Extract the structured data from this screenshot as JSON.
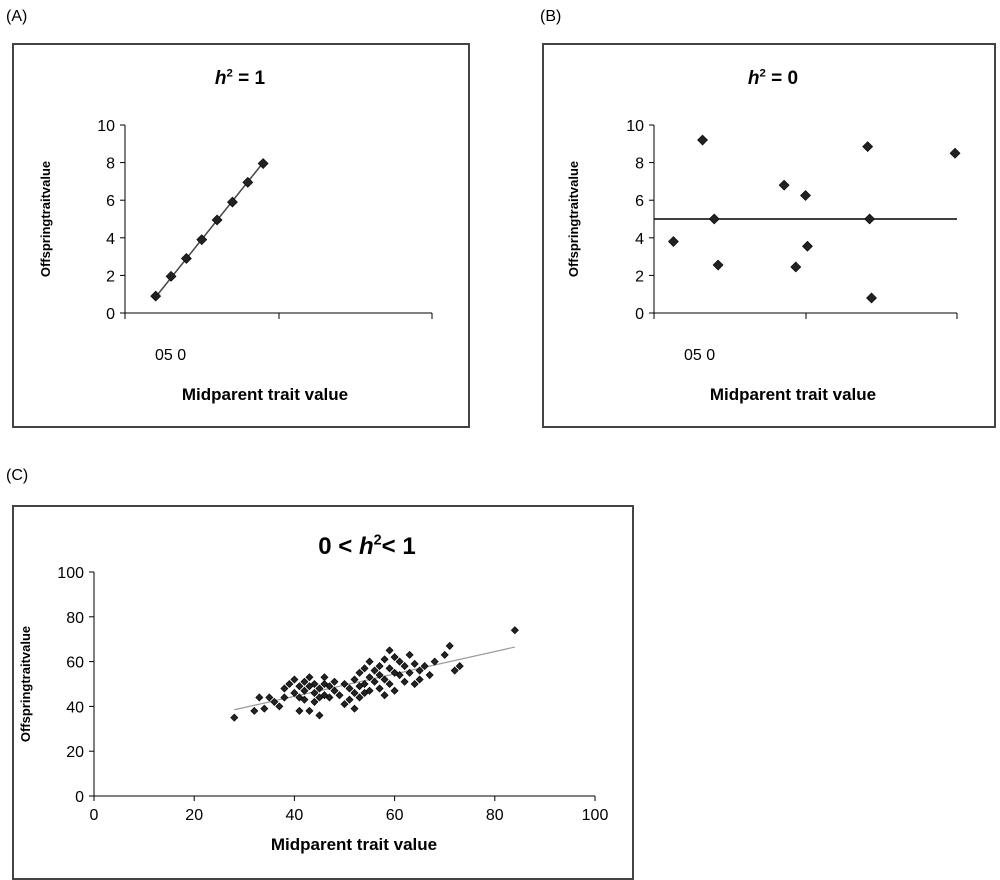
{
  "panel_labels": [
    "(A)",
    "(B)",
    "(C)"
  ],
  "chart_data": [
    {
      "panel": "(A)",
      "type": "scatter",
      "title_var": "h",
      "title_sup": "2",
      "title_rest": " = 1",
      "xlabel": "Midparent trait value",
      "ylabel": "Offspringtraitvalue",
      "x_tick_text": "05 0",
      "ylim": [
        0,
        10
      ],
      "yticks": [
        "0",
        "2",
        "4",
        "6",
        "8",
        "10"
      ],
      "x": [
        1,
        2,
        3,
        4,
        5,
        6,
        7,
        8
      ],
      "y": [
        0.9,
        1.95,
        2.9,
        3.9,
        4.95,
        5.9,
        6.95,
        7.95
      ],
      "trendline": {
        "type": "linear",
        "from": [
          1,
          0.85
        ],
        "to": [
          8,
          8.0
        ]
      }
    },
    {
      "panel": "(B)",
      "type": "scatter",
      "title_var": "h",
      "title_sup": "2",
      "title_rest": " = 0",
      "xlabel": "Midparent trait value",
      "ylabel": "Offspringtraitvalue",
      "x_tick_text": "05 0",
      "ylim": [
        0,
        10
      ],
      "yticks": [
        "0",
        "2",
        "4",
        "6",
        "8",
        "10"
      ],
      "x": [
        0.5,
        2.0,
        2.6,
        2.8,
        6.2,
        6.8,
        7.3,
        7.4,
        10.5,
        10.6,
        10.7,
        15.0
      ],
      "y": [
        3.8,
        9.2,
        5.0,
        2.55,
        6.8,
        2.45,
        6.25,
        3.55,
        8.85,
        5.0,
        0.8,
        8.5
      ],
      "trendline": {
        "type": "horizontal",
        "y": 5.0
      }
    },
    {
      "panel": "(C)",
      "type": "scatter",
      "title_left": "0 < ",
      "title_var": "h",
      "title_sup": "2",
      "title_rest": "< 1",
      "xlabel": "Midparent trait value",
      "ylabel": "Offspringtraitvalue",
      "xlim": [
        0,
        100
      ],
      "ylim": [
        0,
        100
      ],
      "xticks": [
        "0",
        "20",
        "40",
        "60",
        "80",
        "100"
      ],
      "yticks": [
        "0",
        "20",
        "40",
        "60",
        "80",
        "100"
      ],
      "x": [
        28,
        32,
        33,
        34,
        35,
        36,
        37,
        38,
        38,
        39,
        40,
        40,
        41,
        41,
        41,
        42,
        42,
        42,
        43,
        43,
        43,
        44,
        44,
        44,
        45,
        45,
        45,
        46,
        46,
        46,
        47,
        47,
        48,
        48,
        49,
        50,
        50,
        51,
        51,
        52,
        52,
        52,
        53,
        53,
        53,
        54,
        54,
        54,
        55,
        55,
        55,
        56,
        56,
        57,
        57,
        57,
        58,
        58,
        58,
        59,
        59,
        59,
        60,
        60,
        60,
        61,
        61,
        62,
        62,
        63,
        63,
        64,
        64,
        65,
        65,
        66,
        67,
        68,
        70,
        71,
        72,
        73,
        84
      ],
      "y": [
        35,
        38,
        44,
        39,
        44,
        42,
        40,
        48,
        44,
        50,
        46,
        52,
        49,
        44,
        38,
        47,
        51,
        43,
        49,
        53,
        38,
        46,
        50,
        42,
        48,
        44,
        36,
        50,
        45,
        53,
        49,
        44,
        51,
        47,
        45,
        50,
        41,
        48,
        43,
        52,
        46,
        39,
        55,
        49,
        44,
        57,
        50,
        46,
        60,
        53,
        47,
        56,
        51,
        58,
        54,
        48,
        61,
        52,
        45,
        57,
        50,
        65,
        55,
        62,
        47,
        60,
        54,
        58,
        51,
        63,
        55,
        59,
        50,
        56,
        52,
        58,
        54,
        60,
        63,
        67,
        56,
        58,
        74
      ],
      "trendline": {
        "type": "linear",
        "from": [
          28,
          38.5
        ],
        "to": [
          84,
          66.5
        ]
      }
    }
  ]
}
